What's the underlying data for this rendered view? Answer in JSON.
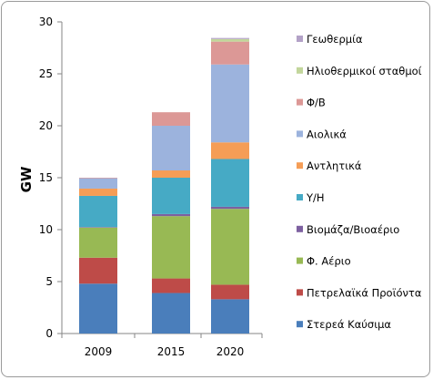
{
  "chart_data": {
    "type": "bar",
    "stacked": true,
    "title": "",
    "xlabel": "",
    "ylabel": "GW",
    "ylim": [
      0,
      30
    ],
    "yticks": [
      0,
      5,
      10,
      15,
      20,
      25,
      30
    ],
    "grid": false,
    "legend_position": "right",
    "categories": [
      "2009",
      "2015",
      "2020"
    ],
    "series": [
      {
        "name": "Στερεά Καύσιμα",
        "color": "#4a7ebb",
        "values": [
          4.8,
          3.9,
          3.3
        ]
      },
      {
        "name": "Πετρελαϊκά Προϊόντα",
        "color": "#be4b48",
        "values": [
          2.5,
          1.4,
          1.4
        ]
      },
      {
        "name": "Φ. Αέριο",
        "color": "#98b954",
        "values": [
          2.9,
          6.0,
          7.3
        ]
      },
      {
        "name": "Βιομάζα/Βιοαέριο",
        "color": "#7d60a0",
        "values": [
          0.05,
          0.2,
          0.2
        ]
      },
      {
        "name": "Υ/Η",
        "color": "#46aac5",
        "values": [
          3.0,
          3.5,
          4.6
        ]
      },
      {
        "name": "Αντλητικά",
        "color": "#f59d56",
        "values": [
          0.7,
          0.7,
          1.6
        ]
      },
      {
        "name": "Αιολικά",
        "color": "#9cb3dd",
        "values": [
          1.0,
          4.3,
          7.5
        ]
      },
      {
        "name": "Φ/Β",
        "color": "#dc9896",
        "values": [
          0.05,
          1.3,
          2.2
        ]
      },
      {
        "name": "Ηλιοθερμικοί σταθμοί",
        "color": "#c2d69b",
        "values": [
          0,
          0,
          0.25
        ]
      },
      {
        "name": "Γεωθερμία",
        "color": "#b3a2c7",
        "values": [
          0,
          0,
          0.1
        ]
      }
    ]
  }
}
